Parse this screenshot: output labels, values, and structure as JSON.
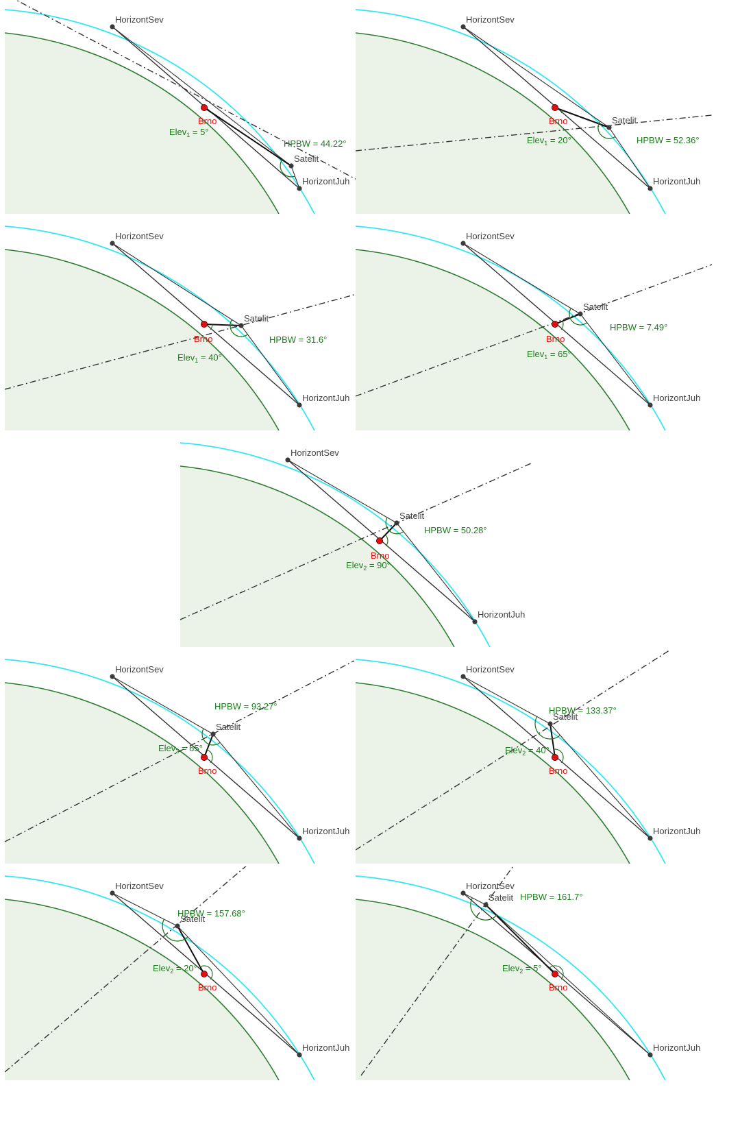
{
  "labels": {
    "north": "HorizontSev",
    "south": "HorizontJuh",
    "site": "Brno",
    "satellite": "Satelit",
    "hpbw_prefix": "HPBW = ",
    "elev_prefix": "Elev",
    "elev_eq": " = "
  },
  "colors": {
    "earth_fill": "#ebf2e8",
    "earth_line": "#2e7d32",
    "orbit_line": "#33e6f2",
    "site_point": "#e01010",
    "points": "#3a3a3a",
    "annotation": "#1e7a1e"
  },
  "panels": [
    {
      "elev_index": "1",
      "elev": "5°",
      "hpbw": "44.22°"
    },
    {
      "elev_index": "1",
      "elev": "20°",
      "hpbw": "52.36°"
    },
    {
      "elev_index": "1",
      "elev": "40°",
      "hpbw": "31.6°"
    },
    {
      "elev_index": "1",
      "elev": "65°",
      "hpbw": "7.49°"
    },
    {
      "elev_index": "2",
      "elev": "90°",
      "hpbw": "50.28°"
    },
    {
      "elev_index": "2",
      "elev": "65°",
      "hpbw": "93.27°"
    },
    {
      "elev_index": "2",
      "elev": "40°",
      "hpbw": "133.37°"
    },
    {
      "elev_index": "2",
      "elev": "20°",
      "hpbw": "157.68°"
    },
    {
      "elev_index": "2",
      "elev": "5°",
      "hpbw": "161.7°"
    }
  ]
}
